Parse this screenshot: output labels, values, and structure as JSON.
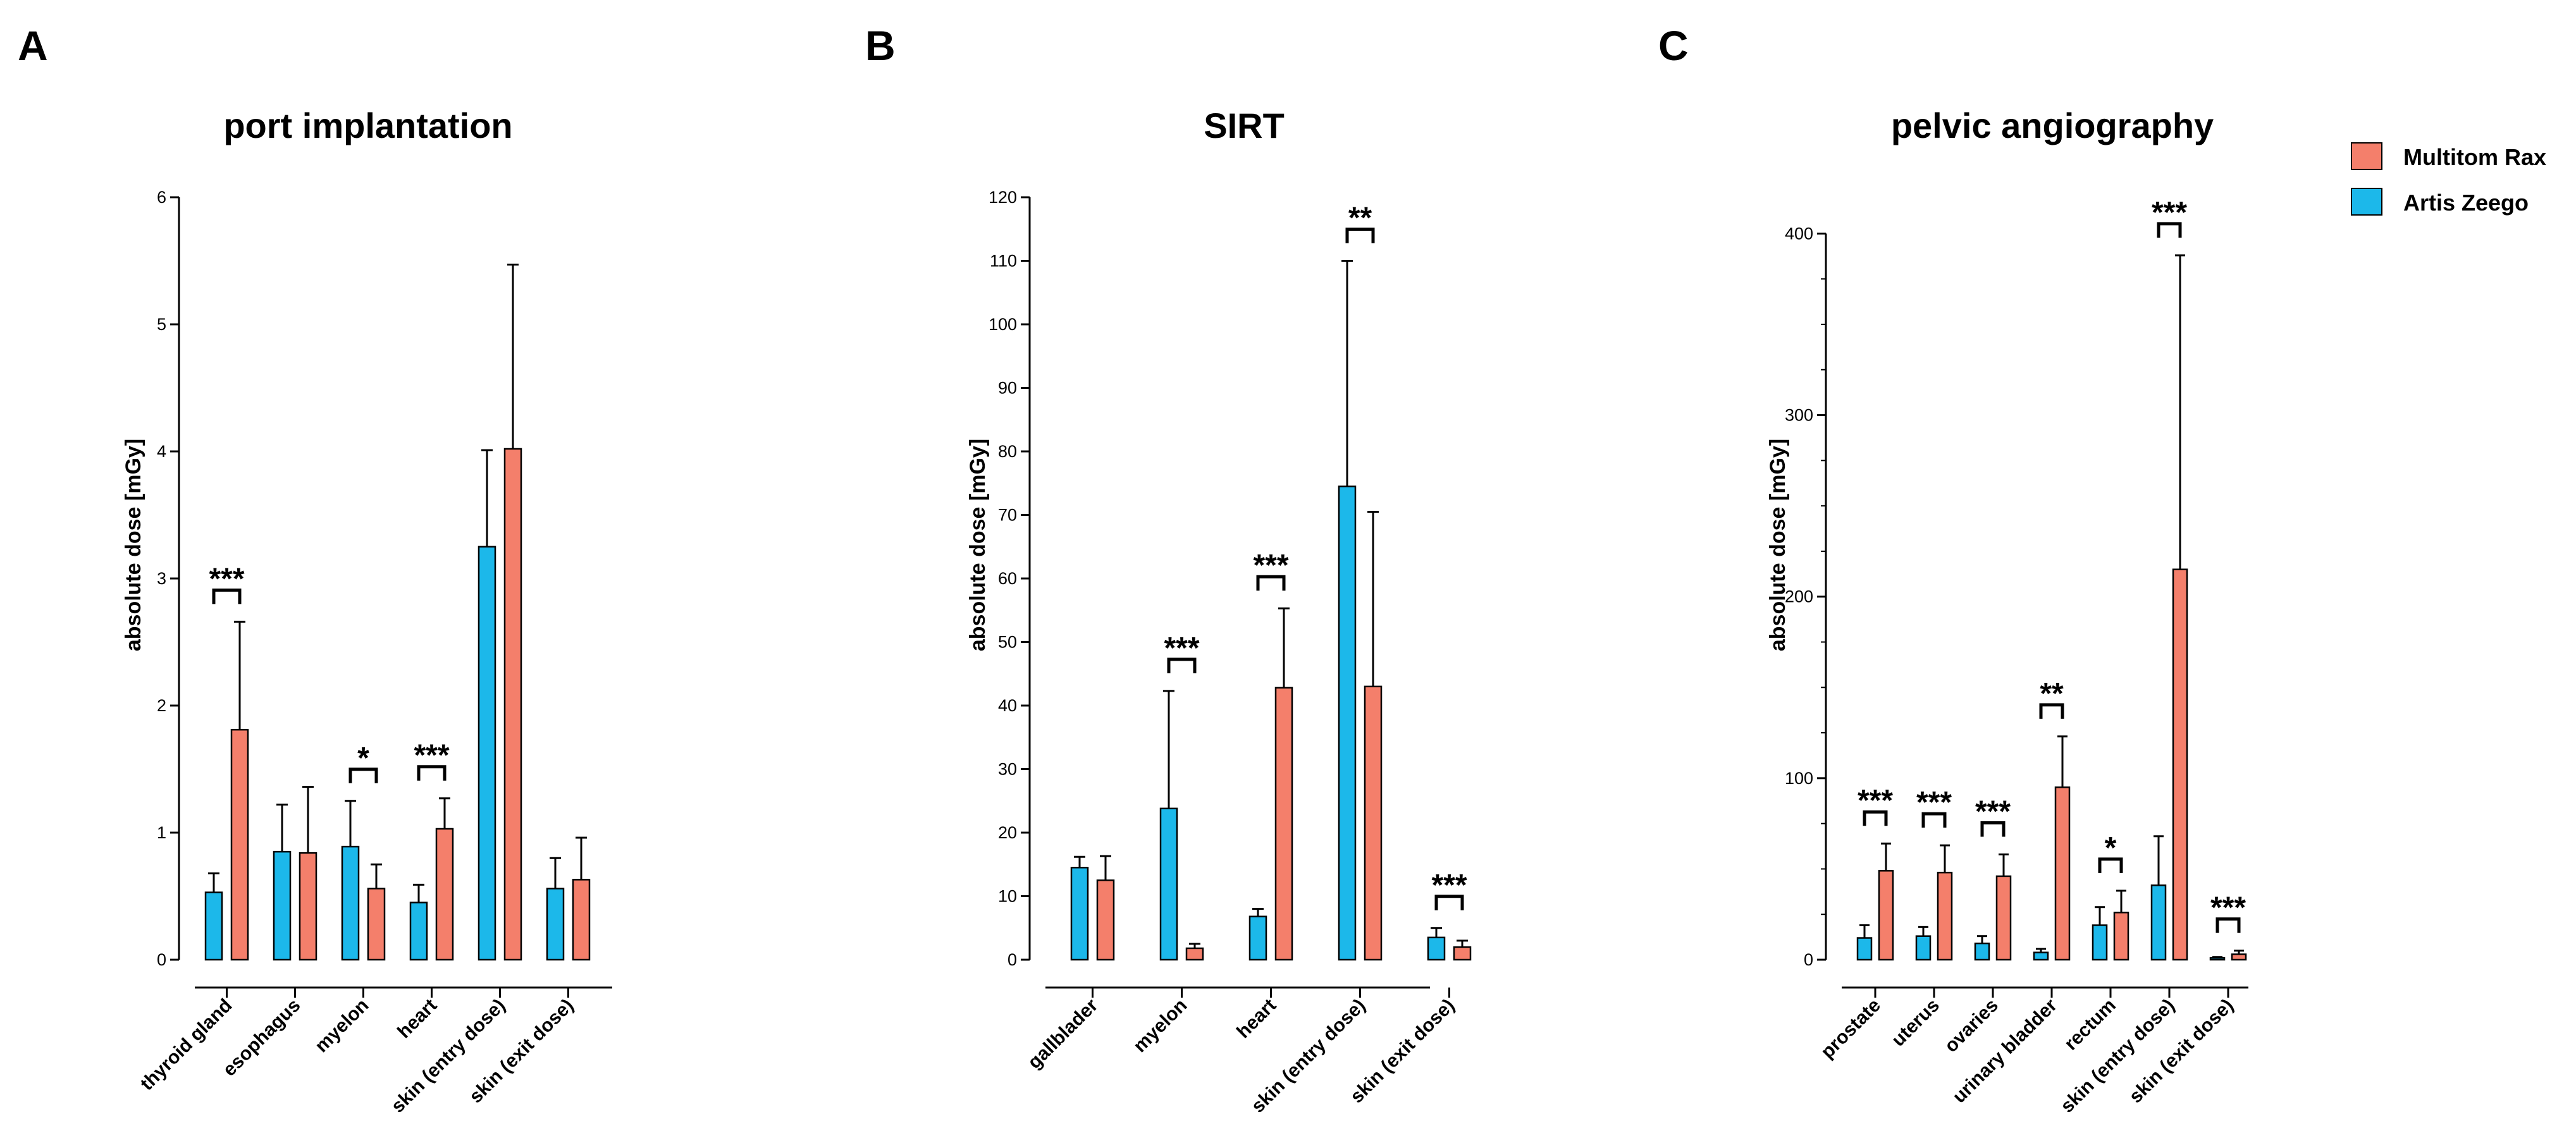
{
  "colors": {
    "artis": "#1cb8ea",
    "multitom": "#f47f6b",
    "ink": "#000000"
  },
  "legend": [
    {
      "key": "multitom",
      "label": "Multitom Rax"
    },
    {
      "key": "artis",
      "label": "Artis Zeego"
    }
  ],
  "chart_data": [
    {
      "type": "bar",
      "letter": "A",
      "title": "port implantation",
      "ylabel": "absolute dose [mGy]",
      "ylim": [
        0,
        6
      ],
      "yticks": [
        0,
        1,
        2,
        3,
        4,
        5,
        6
      ],
      "minor_per_major": 0,
      "categories": [
        "thyroid gland",
        "esophagus",
        "myelon",
        "heart",
        "skin (entry dose)",
        "skin (exit dose)"
      ],
      "series": [
        {
          "name": "Artis Zeego",
          "key": "artis",
          "values": [
            0.53,
            0.85,
            0.89,
            0.45,
            3.25,
            0.56
          ],
          "errors": [
            0.15,
            0.37,
            0.36,
            0.14,
            0.76,
            0.24
          ]
        },
        {
          "name": "Multitom Rax",
          "key": "multitom",
          "values": [
            1.81,
            0.84,
            0.56,
            1.03,
            4.02,
            0.63
          ],
          "errors": [
            0.85,
            0.52,
            0.19,
            0.24,
            1.45,
            0.33
          ]
        }
      ],
      "significance": [
        {
          "category": 0,
          "label": "***"
        },
        {
          "category": 2,
          "label": "*"
        },
        {
          "category": 3,
          "label": "***"
        }
      ]
    },
    {
      "type": "bar",
      "letter": "B",
      "title": "SIRT",
      "ylabel": "absolute dose [mGy]",
      "ylim": [
        0,
        120
      ],
      "yticks": [
        0,
        10,
        20,
        30,
        40,
        50,
        60,
        70,
        80,
        90,
        100,
        110,
        120
      ],
      "minor_per_major": 0,
      "categories": [
        "gallblader",
        "myelon",
        "heart",
        "skin (entry dose)",
        "skin (exit dose)"
      ],
      "series": [
        {
          "name": "Artis Zeego",
          "key": "artis",
          "values": [
            14.5,
            23.8,
            6.8,
            74.5,
            3.5
          ],
          "errors": [
            1.7,
            18.5,
            1.2,
            35.5,
            1.5
          ]
        },
        {
          "name": "Multitom Rax",
          "key": "multitom",
          "values": [
            12.5,
            1.8,
            42.8,
            43.0,
            2.0
          ],
          "errors": [
            3.8,
            0.7,
            12.5,
            27.5,
            1.0
          ]
        }
      ],
      "significance": [
        {
          "category": 1,
          "label": "***"
        },
        {
          "category": 2,
          "label": "***"
        },
        {
          "category": 3,
          "label": "**"
        },
        {
          "category": 4,
          "label": "***"
        }
      ]
    },
    {
      "type": "bar",
      "letter": "C",
      "title": "pelvic angiography",
      "ylabel": "absolute dose [mGy]",
      "ylim": [
        0,
        420
      ],
      "yticks": [
        0,
        100,
        200,
        300,
        400
      ],
      "minor_per_major": 3,
      "categories": [
        "prostate",
        "uterus",
        "ovaries",
        "urinary bladder",
        "rectum",
        "skin (entry dose)",
        "skin (exit dose)"
      ],
      "series": [
        {
          "name": "Artis Zeego",
          "key": "artis",
          "values": [
            12,
            13,
            9,
            4,
            19,
            41,
            1
          ],
          "errors": [
            7,
            5,
            4,
            2,
            10,
            27,
            0.5
          ]
        },
        {
          "name": "Multitom Rax",
          "key": "multitom",
          "values": [
            49,
            48,
            46,
            95,
            26,
            215,
            3
          ],
          "errors": [
            15,
            15,
            12,
            28,
            12,
            173,
            2
          ]
        }
      ],
      "significance": [
        {
          "category": 0,
          "label": "***"
        },
        {
          "category": 1,
          "label": "***"
        },
        {
          "category": 2,
          "label": "***"
        },
        {
          "category": 3,
          "label": "**"
        },
        {
          "category": 4,
          "label": "*"
        },
        {
          "category": 5,
          "label": "***"
        },
        {
          "category": 6,
          "label": "***"
        }
      ]
    }
  ]
}
